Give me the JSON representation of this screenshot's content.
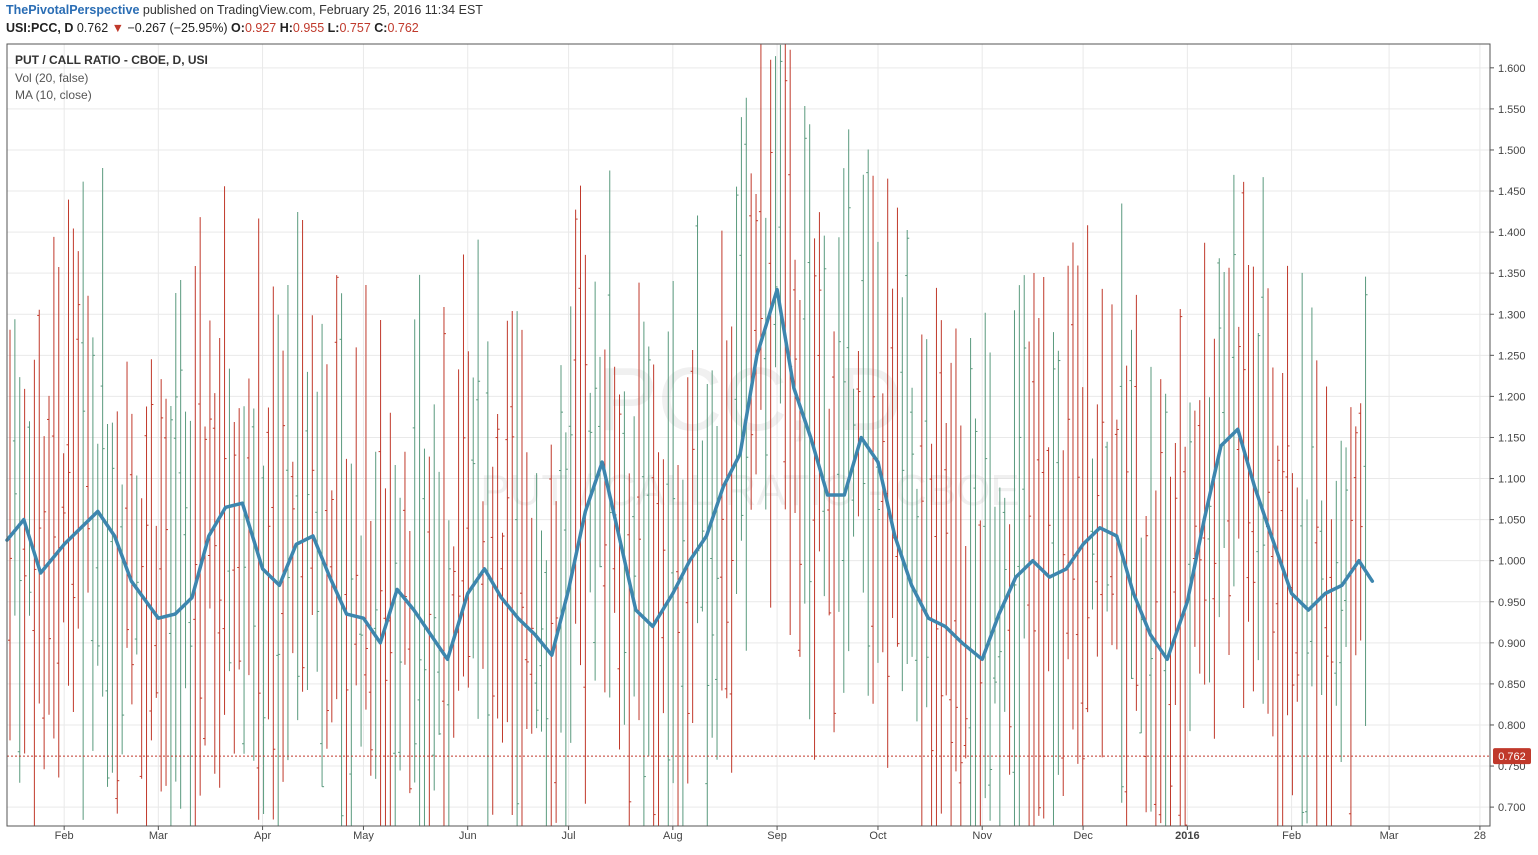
{
  "header": {
    "author": "ThePivotalPerspective",
    "published": "published on TradingView.com, February 25, 2016 11:34 EST",
    "symbol": "USI:PCC, D",
    "last": "0.762",
    "change_arrow": "▼",
    "change": "−0.267 (−25.95%)",
    "o_label": "O:",
    "o_val": "0.927",
    "h_label": "H:",
    "h_val": "0.955",
    "l_label": "L:",
    "l_val": "0.757",
    "c_label": "C:",
    "c_val": "0.762"
  },
  "legend": {
    "main": "PUT / CALL RATIO - CBOE, D, USI",
    "vol": "Vol (20, false)",
    "ma": "MA (10, close)"
  },
  "watermark": {
    "big": "PCC, D",
    "small": "PUT / CALL RATIO - CBOE"
  },
  "colors": {
    "up": "#5a9a7e",
    "down": "#c0392b",
    "ma": "#3d86ae",
    "grid": "#e9e9e9",
    "price_line": "#c0392b",
    "price_label_bg": "#c0392b"
  },
  "price_label": "0.762",
  "chart_data": {
    "type": "line",
    "title": "PUT / CALL RATIO - CBOE, D, USI",
    "y_ticks": [
      "1.600",
      "1.550",
      "1.500",
      "1.450",
      "1.400",
      "1.350",
      "1.300",
      "1.250",
      "1.200",
      "1.150",
      "1.100",
      "1.050",
      "1.000",
      "0.950",
      "0.900",
      "0.850",
      "0.800",
      "0.750",
      "0.700"
    ],
    "ylim": [
      0.677,
      1.629
    ],
    "x_ticks": [
      "Feb",
      "Mar",
      "Apr",
      "May",
      "Jun",
      "Jul",
      "Aug",
      "Sep",
      "Oct",
      "Nov",
      "Dec",
      "2016",
      "Feb",
      "Mar",
      "28"
    ],
    "x_tick_dates": [
      "2015-02-01",
      "2015-03-01",
      "2015-04-01",
      "2015-05-01",
      "2015-06-01",
      "2015-07-01",
      "2015-08-01",
      "2015-09-01",
      "2015-10-01",
      "2015-11-01",
      "2015-12-01",
      "2016-01-01",
      "2016-02-01",
      "2016-03-01",
      "2016-03-28"
    ],
    "x_range": [
      "2015-01-15",
      "2016-03-31"
    ],
    "last_close": 0.762,
    "series": [
      {
        "name": "MA (10, close)",
        "dates": [
          "2015-01-15",
          "2015-01-20",
          "2015-01-25",
          "2015-02-01",
          "2015-02-06",
          "2015-02-11",
          "2015-02-16",
          "2015-02-21",
          "2015-03-01",
          "2015-03-06",
          "2015-03-11",
          "2015-03-16",
          "2015-03-21",
          "2015-03-26",
          "2015-04-01",
          "2015-04-06",
          "2015-04-11",
          "2015-04-16",
          "2015-04-21",
          "2015-04-26",
          "2015-05-01",
          "2015-05-06",
          "2015-05-11",
          "2015-05-16",
          "2015-05-21",
          "2015-05-26",
          "2015-06-01",
          "2015-06-06",
          "2015-06-11",
          "2015-06-16",
          "2015-06-21",
          "2015-06-26",
          "2015-07-01",
          "2015-07-06",
          "2015-07-11",
          "2015-07-16",
          "2015-07-21",
          "2015-07-26",
          "2015-08-01",
          "2015-08-06",
          "2015-08-11",
          "2015-08-16",
          "2015-08-21",
          "2015-08-26",
          "2015-09-01",
          "2015-09-06",
          "2015-09-11",
          "2015-09-16",
          "2015-09-21",
          "2015-09-26",
          "2015-10-01",
          "2015-10-06",
          "2015-10-11",
          "2015-10-16",
          "2015-10-21",
          "2015-10-26",
          "2015-11-01",
          "2015-11-06",
          "2015-11-11",
          "2015-11-16",
          "2015-11-21",
          "2015-11-26",
          "2015-12-01",
          "2015-12-06",
          "2015-12-11",
          "2015-12-16",
          "2015-12-21",
          "2015-12-26",
          "2016-01-01",
          "2016-01-06",
          "2016-01-11",
          "2016-01-16",
          "2016-01-21",
          "2016-01-26",
          "2016-02-01",
          "2016-02-06",
          "2016-02-11",
          "2016-02-16",
          "2016-02-21",
          "2016-02-25"
        ],
        "values": [
          1.025,
          1.05,
          0.985,
          1.02,
          1.04,
          1.06,
          1.03,
          0.975,
          0.93,
          0.935,
          0.955,
          1.03,
          1.065,
          1.07,
          0.99,
          0.97,
          1.02,
          1.03,
          0.98,
          0.935,
          0.93,
          0.9,
          0.965,
          0.94,
          0.91,
          0.88,
          0.96,
          0.99,
          0.955,
          0.93,
          0.91,
          0.885,
          0.965,
          1.06,
          1.12,
          1.03,
          0.94,
          0.92,
          0.96,
          1.0,
          1.03,
          1.09,
          1.13,
          1.25,
          1.33,
          1.21,
          1.15,
          1.08,
          1.08,
          1.15,
          1.12,
          1.03,
          0.97,
          0.93,
          0.92,
          0.9,
          0.88,
          0.935,
          0.98,
          1.0,
          0.98,
          0.99,
          1.02,
          1.04,
          1.03,
          0.96,
          0.91,
          0.88,
          0.95,
          1.05,
          1.14,
          1.16,
          1.09,
          1.03,
          0.96,
          0.94,
          0.96,
          0.97,
          1.0,
          0.975
        ]
      }
    ]
  }
}
